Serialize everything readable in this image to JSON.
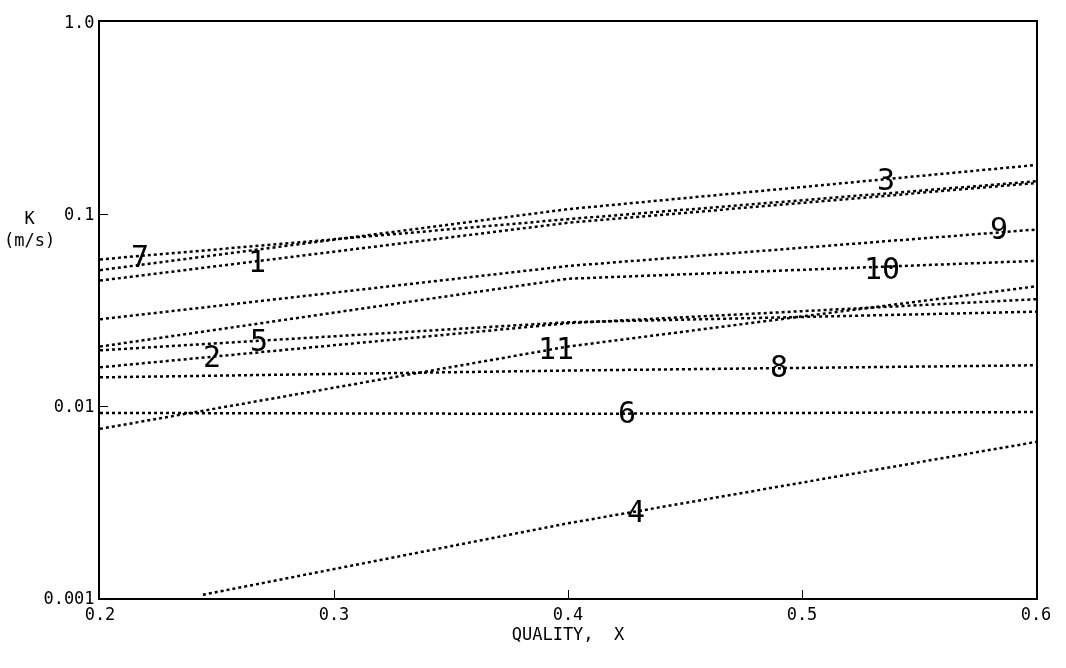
{
  "chart_data": {
    "type": "line",
    "xlabel": "QUALITY,  X",
    "ylabel": "K\n(m/s)",
    "x": [
      0.2,
      0.4,
      0.6
    ],
    "series": [
      {
        "color": "#000000",
        "values": [
          0.058,
          0.094,
          0.148
        ]
      },
      {
        "color": "#000000",
        "values": [
          0.045,
          0.09,
          0.145
        ]
      },
      {
        "color": "#000000",
        "values": [
          0.051,
          0.106,
          0.18
        ]
      },
      {
        "color": "#000000",
        "values": [
          0.0283,
          0.0536,
          0.083
        ]
      },
      {
        "color": "#000000",
        "values": [
          0.0204,
          0.046,
          0.057
        ]
      },
      {
        "color": "#000000",
        "values": [
          0.0195,
          0.0273,
          0.031
        ]
      },
      {
        "color": "#000000",
        "values": [
          0.0159,
          0.027,
          0.036
        ]
      },
      {
        "color": "#000000",
        "values": [
          0.0076,
          0.0204,
          0.042
        ]
      },
      {
        "color": "#000000",
        "values": [
          0.0141,
          0.0153,
          0.0163
        ]
      },
      {
        "color": "#000000",
        "values": [
          0.0092,
          0.0091,
          0.0093
        ]
      },
      {
        "color": "#000000",
        "x": [
          0.244,
          0.4,
          0.6
        ],
        "values": [
          0.00104,
          0.00245,
          0.0065
        ]
      }
    ],
    "annotations": [
      {
        "text": "7",
        "x": 0.217,
        "y": 0.0604
      },
      {
        "text": "1",
        "x": 0.267,
        "y": 0.0568
      },
      {
        "text": "3",
        "x": 0.536,
        "y": 0.152
      },
      {
        "text": "5",
        "x": 0.268,
        "y": 0.0219
      },
      {
        "text": "2",
        "x": 0.248,
        "y": 0.018
      },
      {
        "text": "11",
        "x": 0.395,
        "y": 0.02
      },
      {
        "text": "10",
        "x": 0.534,
        "y": 0.052
      },
      {
        "text": "9",
        "x": 0.584,
        "y": 0.084
      },
      {
        "text": "8",
        "x": 0.49,
        "y": 0.016
      },
      {
        "text": "6",
        "x": 0.425,
        "y": 0.0093
      },
      {
        "text": "4",
        "x": 0.429,
        "y": 0.00282
      }
    ],
    "xlim": [
      0.2,
      0.6
    ],
    "xticks": [
      0.2,
      0.3,
      0.4,
      0.5,
      0.6
    ],
    "ylim": [
      0.001,
      1
    ],
    "yticks": [
      0.001,
      0.01,
      0.1,
      {
        "value": 1,
        "label": "1.0"
      }
    ],
    "log": "y",
    "grid": false,
    "marker": "none",
    "line_style": "dotted"
  }
}
